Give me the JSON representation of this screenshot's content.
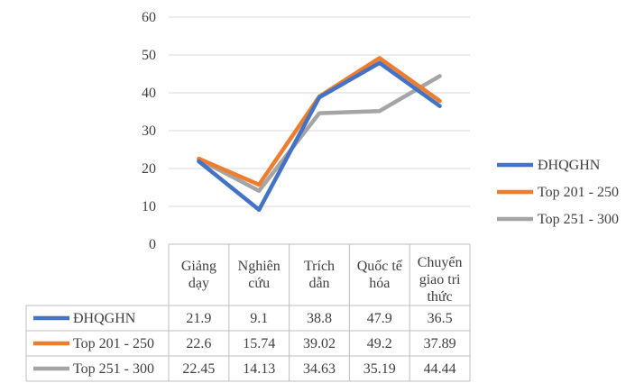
{
  "chart_data": {
    "type": "line",
    "categories": [
      [
        "Giảng",
        "dạy"
      ],
      [
        "Nghiên",
        "cứu"
      ],
      [
        "Trích",
        "dẫn"
      ],
      [
        "Quốc tế",
        "hóa"
      ],
      [
        "Chuyển",
        "giao tri",
        "thức"
      ]
    ],
    "series": [
      {
        "name": "ĐHQGHN",
        "color": "#4472C4",
        "values": [
          21.9,
          9.1,
          38.8,
          47.9,
          36.5
        ],
        "labels": [
          "21.9",
          "9.1",
          "38.8",
          "47.9",
          "36.5"
        ]
      },
      {
        "name": "Top 201 - 250",
        "color": "#ED7D31",
        "values": [
          22.6,
          15.74,
          39.02,
          49.2,
          37.89
        ],
        "labels": [
          "22.6",
          "15.74",
          "39.02",
          "49.2",
          "37.89"
        ]
      },
      {
        "name": "Top 251 - 300",
        "color": "#A5A5A5",
        "values": [
          22.45,
          14.13,
          34.63,
          35.19,
          44.44
        ],
        "labels": [
          "22.45",
          "14.13",
          "34.63",
          "35.19",
          "44.44"
        ]
      }
    ],
    "yticks": [
      "0",
      "10",
      "20",
      "30",
      "40",
      "50",
      "60"
    ],
    "ylim": [
      0,
      60
    ],
    "grid": true,
    "legend": "right",
    "data_table": true
  }
}
